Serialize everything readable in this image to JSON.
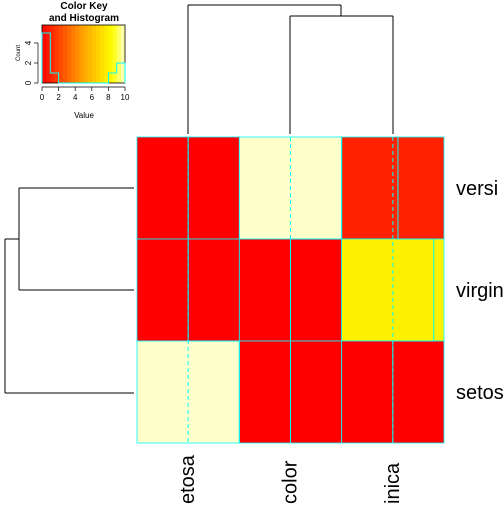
{
  "chart_data": {
    "type": "heatmap",
    "columns": [
      "setosa",
      "versicolor",
      "virginica"
    ],
    "rows": [
      "versicolor",
      "virginica",
      "setosa"
    ],
    "column_labels_shown": [
      "etosa",
      "color",
      "inica"
    ],
    "row_labels_shown": [
      "versi",
      "virgin",
      "setos"
    ],
    "values": [
      [
        0,
        10,
        1
      ],
      [
        0,
        0,
        8
      ],
      [
        10,
        0,
        0
      ]
    ],
    "color_scale": {
      "min": 0,
      "max": 10,
      "low_color": "#FF0000",
      "mid_color": "#FFA500",
      "high_color": "#FFFFCC"
    },
    "key": {
      "title": "Color Key\nand Histogram",
      "title_line1": "Color Key",
      "title_line2": "and Histogram",
      "xlabel": "Value",
      "ylabel": "Count",
      "x_ticks": [
        "0",
        "2",
        "4",
        "6",
        "8",
        "10"
      ],
      "y_ticks": [
        "0",
        "2",
        "4"
      ],
      "histogram_counts_by_value": [
        {
          "value": 0.5,
          "count": 5
        },
        {
          "value": 1.5,
          "count": 1
        },
        {
          "value": 8.5,
          "count": 1
        },
        {
          "value": 9.5,
          "count": 2
        }
      ]
    },
    "trace_color": "#00FFFF",
    "cell_border_color": "#00FFFF",
    "column_dendrogram": "setosa joins (versicolor, virginica)",
    "row_dendrogram": "setosa joins (versicolor, virginica)"
  }
}
